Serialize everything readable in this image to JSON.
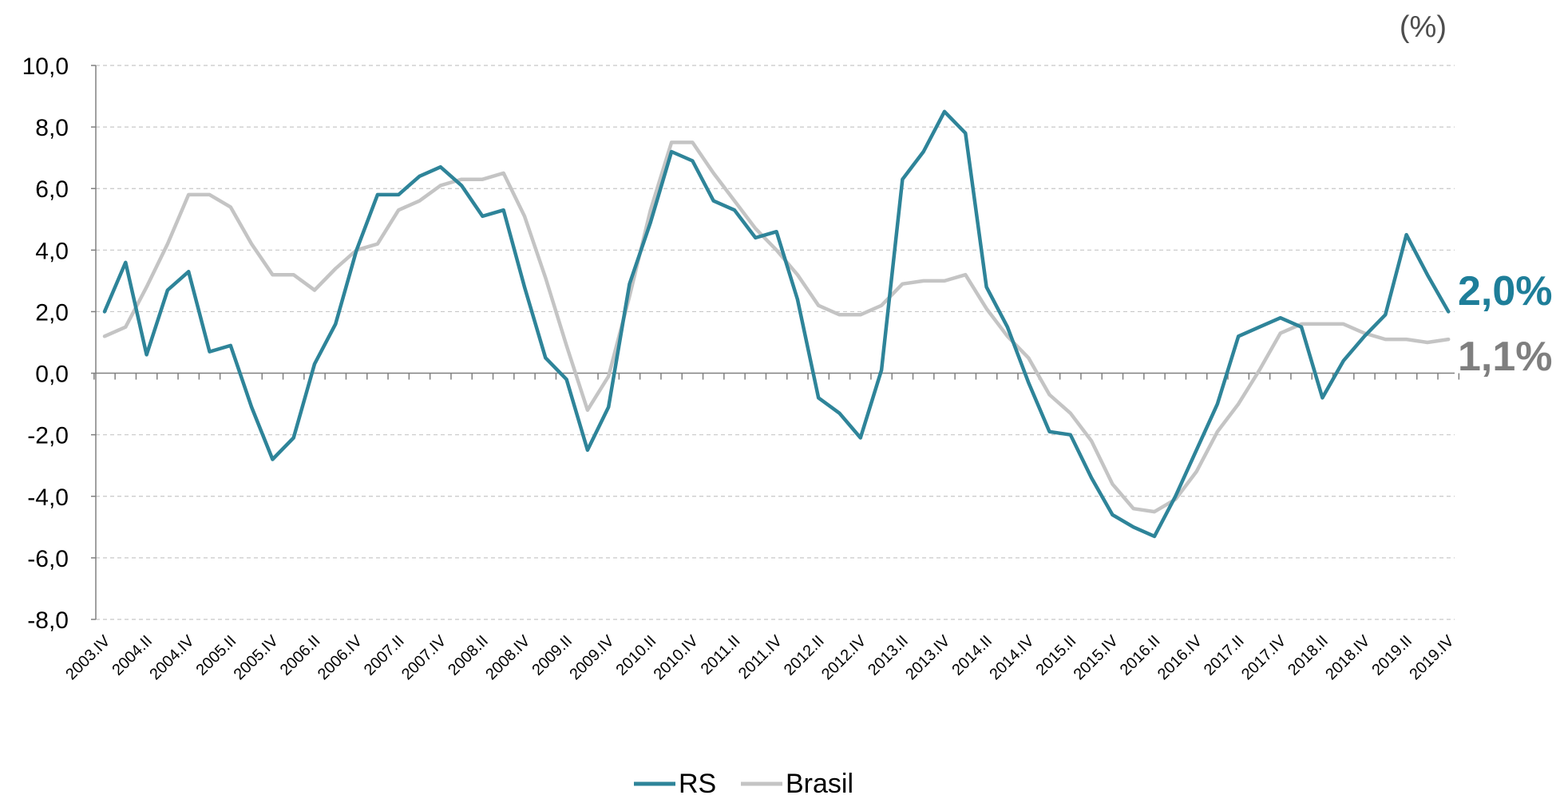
{
  "chart_data": {
    "type": "line",
    "unit_label": "(%)",
    "ylim": [
      -8,
      10
    ],
    "y_ticks": [
      "10,0",
      "8,0",
      "6,0",
      "4,0",
      "2,0",
      "0,0",
      "-2,0",
      "-4,0",
      "-6,0",
      "-8,0"
    ],
    "y_tick_values": [
      10,
      8,
      6,
      4,
      2,
      0,
      -2,
      -4,
      -6,
      -8
    ],
    "x_labels": [
      "2003.IV",
      "2004.II",
      "2004.IV",
      "2005.II",
      "2005.IV",
      "2006.II",
      "2006.IV",
      "2007.II",
      "2007.IV",
      "2008.II",
      "2008.IV",
      "2009.II",
      "2009.IV",
      "2010.II",
      "2010.IV",
      "2011.II",
      "2011.IV",
      "2012.II",
      "2012.IV",
      "2013.II",
      "2013.IV",
      "2014.II",
      "2014.IV",
      "2015.II",
      "2015.IV",
      "2016.II",
      "2016.IV",
      "2017.II",
      "2017.IV",
      "2018.II",
      "2018.IV",
      "2019.II",
      "2019.IV"
    ],
    "x_quarters": [
      "2003.IV",
      "2004.I",
      "2004.II",
      "2004.III",
      "2004.IV",
      "2005.I",
      "2005.II",
      "2005.III",
      "2005.IV",
      "2006.I",
      "2006.II",
      "2006.III",
      "2006.IV",
      "2007.I",
      "2007.II",
      "2007.III",
      "2007.IV",
      "2008.I",
      "2008.II",
      "2008.III",
      "2008.IV",
      "2009.I",
      "2009.II",
      "2009.III",
      "2009.IV",
      "2010.I",
      "2010.II",
      "2010.III",
      "2010.IV",
      "2011.I",
      "2011.II",
      "2011.III",
      "2011.IV",
      "2012.I",
      "2012.II",
      "2012.III",
      "2012.IV",
      "2013.I",
      "2013.II",
      "2013.III",
      "2013.IV",
      "2014.I",
      "2014.II",
      "2014.III",
      "2014.IV",
      "2015.I",
      "2015.II",
      "2015.III",
      "2015.IV",
      "2016.I",
      "2016.II",
      "2016.III",
      "2016.IV",
      "2017.I",
      "2017.II",
      "2017.III",
      "2017.IV",
      "2018.I",
      "2018.II",
      "2018.III",
      "2018.IV",
      "2019.I",
      "2019.II",
      "2019.III",
      "2019.IV"
    ],
    "series": [
      {
        "name": "RS",
        "color": "#2e8499",
        "values": [
          2.0,
          3.6,
          0.6,
          2.7,
          3.3,
          0.7,
          0.9,
          -1.1,
          -2.8,
          -2.1,
          0.3,
          1.6,
          4.0,
          5.8,
          5.8,
          6.4,
          6.7,
          6.1,
          5.1,
          5.3,
          2.8,
          0.5,
          -0.2,
          -2.5,
          -1.1,
          2.9,
          4.9,
          7.2,
          6.9,
          5.6,
          5.3,
          4.4,
          4.6,
          2.4,
          -0.8,
          -1.3,
          -2.1,
          0.1,
          6.3,
          7.2,
          8.5,
          7.8,
          2.8,
          1.5,
          -0.3,
          -1.9,
          -2.0,
          -3.4,
          -4.6,
          -5.0,
          -5.3,
          -4.0,
          -2.5,
          -1.0,
          1.2,
          1.5,
          1.8,
          1.5,
          -0.8,
          0.4,
          1.2,
          1.9,
          4.5,
          3.2,
          2.0
        ]
      },
      {
        "name": "Brasil",
        "color": "#c4c4c4",
        "values": [
          1.2,
          1.5,
          2.8,
          4.2,
          5.8,
          5.8,
          5.4,
          4.2,
          3.2,
          3.2,
          2.7,
          3.4,
          4.0,
          4.2,
          5.3,
          5.6,
          6.1,
          6.3,
          6.3,
          6.5,
          5.1,
          3.1,
          0.9,
          -1.2,
          -0.1,
          2.5,
          5.3,
          7.5,
          7.5,
          6.5,
          5.6,
          4.7,
          4.0,
          3.2,
          2.2,
          1.9,
          1.9,
          2.2,
          2.9,
          3.0,
          3.0,
          3.2,
          2.1,
          1.2,
          0.5,
          -0.7,
          -1.3,
          -2.2,
          -3.6,
          -4.4,
          -4.5,
          -4.1,
          -3.2,
          -1.9,
          -1.0,
          0.1,
          1.3,
          1.6,
          1.6,
          1.6,
          1.3,
          1.1,
          1.1,
          1.0,
          1.1
        ]
      }
    ],
    "end_labels": [
      {
        "text": "2,0%",
        "color": "#1e7e99"
      },
      {
        "text": "1,1%",
        "color": "#7f7f7f"
      }
    ],
    "legend": [
      {
        "label": "RS",
        "color": "#2e8499"
      },
      {
        "label": "Brasil",
        "color": "#c4c4c4"
      }
    ],
    "legend_position": "bottom-center",
    "grid": true
  }
}
